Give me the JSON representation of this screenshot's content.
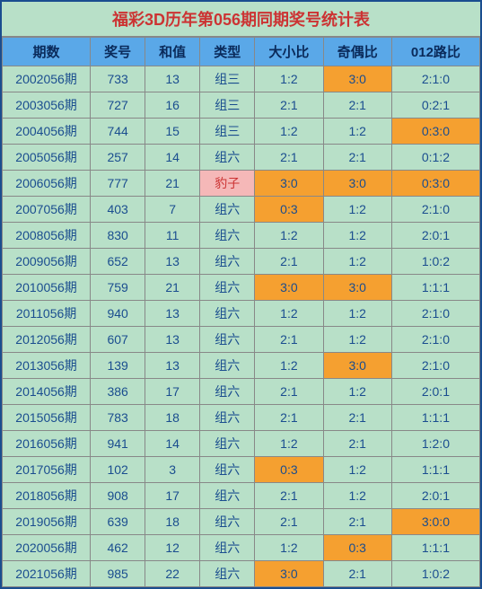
{
  "title": "福彩3D历年第056期同期奖号统计表",
  "columns": [
    "期数",
    "奖号",
    "和值",
    "类型",
    "大小比",
    "奇偶比",
    "012路比"
  ],
  "column_widths": [
    "90px",
    "56px",
    "56px",
    "56px",
    "70px",
    "70px",
    "90px"
  ],
  "colors": {
    "border": "#1a4d8f",
    "title_bg": "#b8e0c8",
    "title_fg": "#cc3333",
    "header_bg": "#5aa8e8",
    "header_fg": "#0a2a5a",
    "cell_bg": "#b8e0c8",
    "cell_fg": "#1a4d8f",
    "highlight_orange": "#f5a030",
    "highlight_pink_bg": "#f5b8b8",
    "highlight_pink_fg": "#cc3333",
    "grid": "#888"
  },
  "rows": [
    {
      "c": [
        "2002056期",
        "733",
        "13",
        "组三",
        "1:2",
        "3:0",
        "2:1:0"
      ],
      "hl": {
        "5": "orange"
      }
    },
    {
      "c": [
        "2003056期",
        "727",
        "16",
        "组三",
        "2:1",
        "2:1",
        "0:2:1"
      ],
      "hl": {}
    },
    {
      "c": [
        "2004056期",
        "744",
        "15",
        "组三",
        "1:2",
        "1:2",
        "0:3:0"
      ],
      "hl": {
        "6": "orange"
      }
    },
    {
      "c": [
        "2005056期",
        "257",
        "14",
        "组六",
        "2:1",
        "2:1",
        "0:1:2"
      ],
      "hl": {}
    },
    {
      "c": [
        "2006056期",
        "777",
        "21",
        "豹子",
        "3:0",
        "3:0",
        "0:3:0"
      ],
      "hl": {
        "3": "pink",
        "4": "orange",
        "5": "orange",
        "6": "orange"
      }
    },
    {
      "c": [
        "2007056期",
        "403",
        "7",
        "组六",
        "0:3",
        "1:2",
        "2:1:0"
      ],
      "hl": {
        "4": "orange"
      }
    },
    {
      "c": [
        "2008056期",
        "830",
        "11",
        "组六",
        "1:2",
        "1:2",
        "2:0:1"
      ],
      "hl": {}
    },
    {
      "c": [
        "2009056期",
        "652",
        "13",
        "组六",
        "2:1",
        "1:2",
        "1:0:2"
      ],
      "hl": {}
    },
    {
      "c": [
        "2010056期",
        "759",
        "21",
        "组六",
        "3:0",
        "3:0",
        "1:1:1"
      ],
      "hl": {
        "4": "orange",
        "5": "orange"
      }
    },
    {
      "c": [
        "2011056期",
        "940",
        "13",
        "组六",
        "1:2",
        "1:2",
        "2:1:0"
      ],
      "hl": {}
    },
    {
      "c": [
        "2012056期",
        "607",
        "13",
        "组六",
        "2:1",
        "1:2",
        "2:1:0"
      ],
      "hl": {}
    },
    {
      "c": [
        "2013056期",
        "139",
        "13",
        "组六",
        "1:2",
        "3:0",
        "2:1:0"
      ],
      "hl": {
        "5": "orange"
      }
    },
    {
      "c": [
        "2014056期",
        "386",
        "17",
        "组六",
        "2:1",
        "1:2",
        "2:0:1"
      ],
      "hl": {}
    },
    {
      "c": [
        "2015056期",
        "783",
        "18",
        "组六",
        "2:1",
        "2:1",
        "1:1:1"
      ],
      "hl": {}
    },
    {
      "c": [
        "2016056期",
        "941",
        "14",
        "组六",
        "1:2",
        "2:1",
        "1:2:0"
      ],
      "hl": {}
    },
    {
      "c": [
        "2017056期",
        "102",
        "3",
        "组六",
        "0:3",
        "1:2",
        "1:1:1"
      ],
      "hl": {
        "4": "orange"
      }
    },
    {
      "c": [
        "2018056期",
        "908",
        "17",
        "组六",
        "2:1",
        "1:2",
        "2:0:1"
      ],
      "hl": {}
    },
    {
      "c": [
        "2019056期",
        "639",
        "18",
        "组六",
        "2:1",
        "2:1",
        "3:0:0"
      ],
      "hl": {
        "6": "orange"
      }
    },
    {
      "c": [
        "2020056期",
        "462",
        "12",
        "组六",
        "1:2",
        "0:3",
        "1:1:1"
      ],
      "hl": {
        "5": "orange"
      }
    },
    {
      "c": [
        "2021056期",
        "985",
        "22",
        "组六",
        "3:0",
        "2:1",
        "1:0:2"
      ],
      "hl": {
        "4": "orange"
      }
    }
  ]
}
